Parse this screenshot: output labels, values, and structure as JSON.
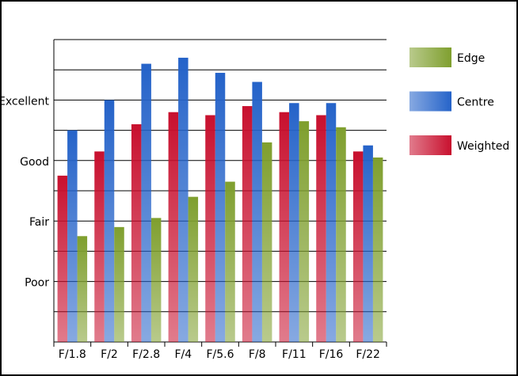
{
  "chart_data": {
    "type": "bar",
    "categories": [
      "F/1.8",
      "F/2",
      "F/2.8",
      "F/4",
      "F/5.6",
      "F/8",
      "F/11",
      "F/16",
      "F/22"
    ],
    "series": [
      {
        "name": "Weighted",
        "color": "#c8102e",
        "values": [
          5.5,
          6.3,
          7.2,
          7.6,
          7.5,
          7.8,
          7.6,
          7.5,
          6.3
        ]
      },
      {
        "name": "Centre",
        "color": "#2563c9",
        "values": [
          7.0,
          8.0,
          9.2,
          9.4,
          8.9,
          8.6,
          7.9,
          7.9,
          6.5
        ]
      },
      {
        "name": "Edge",
        "color": "#7f9f2e",
        "values": [
          3.5,
          3.8,
          4.1,
          4.8,
          5.3,
          6.6,
          7.3,
          7.1,
          6.1
        ]
      }
    ],
    "ylim": [
      0,
      10
    ],
    "yticks": [
      {
        "value": 2,
        "label": "Poor"
      },
      {
        "value": 4,
        "label": "Fair"
      },
      {
        "value": 6,
        "label": "Good"
      },
      {
        "value": 8,
        "label": "Excellent"
      }
    ],
    "ygrid": [
      1,
      2,
      3,
      4,
      5,
      6,
      7,
      8,
      9,
      10
    ],
    "grid": true
  }
}
